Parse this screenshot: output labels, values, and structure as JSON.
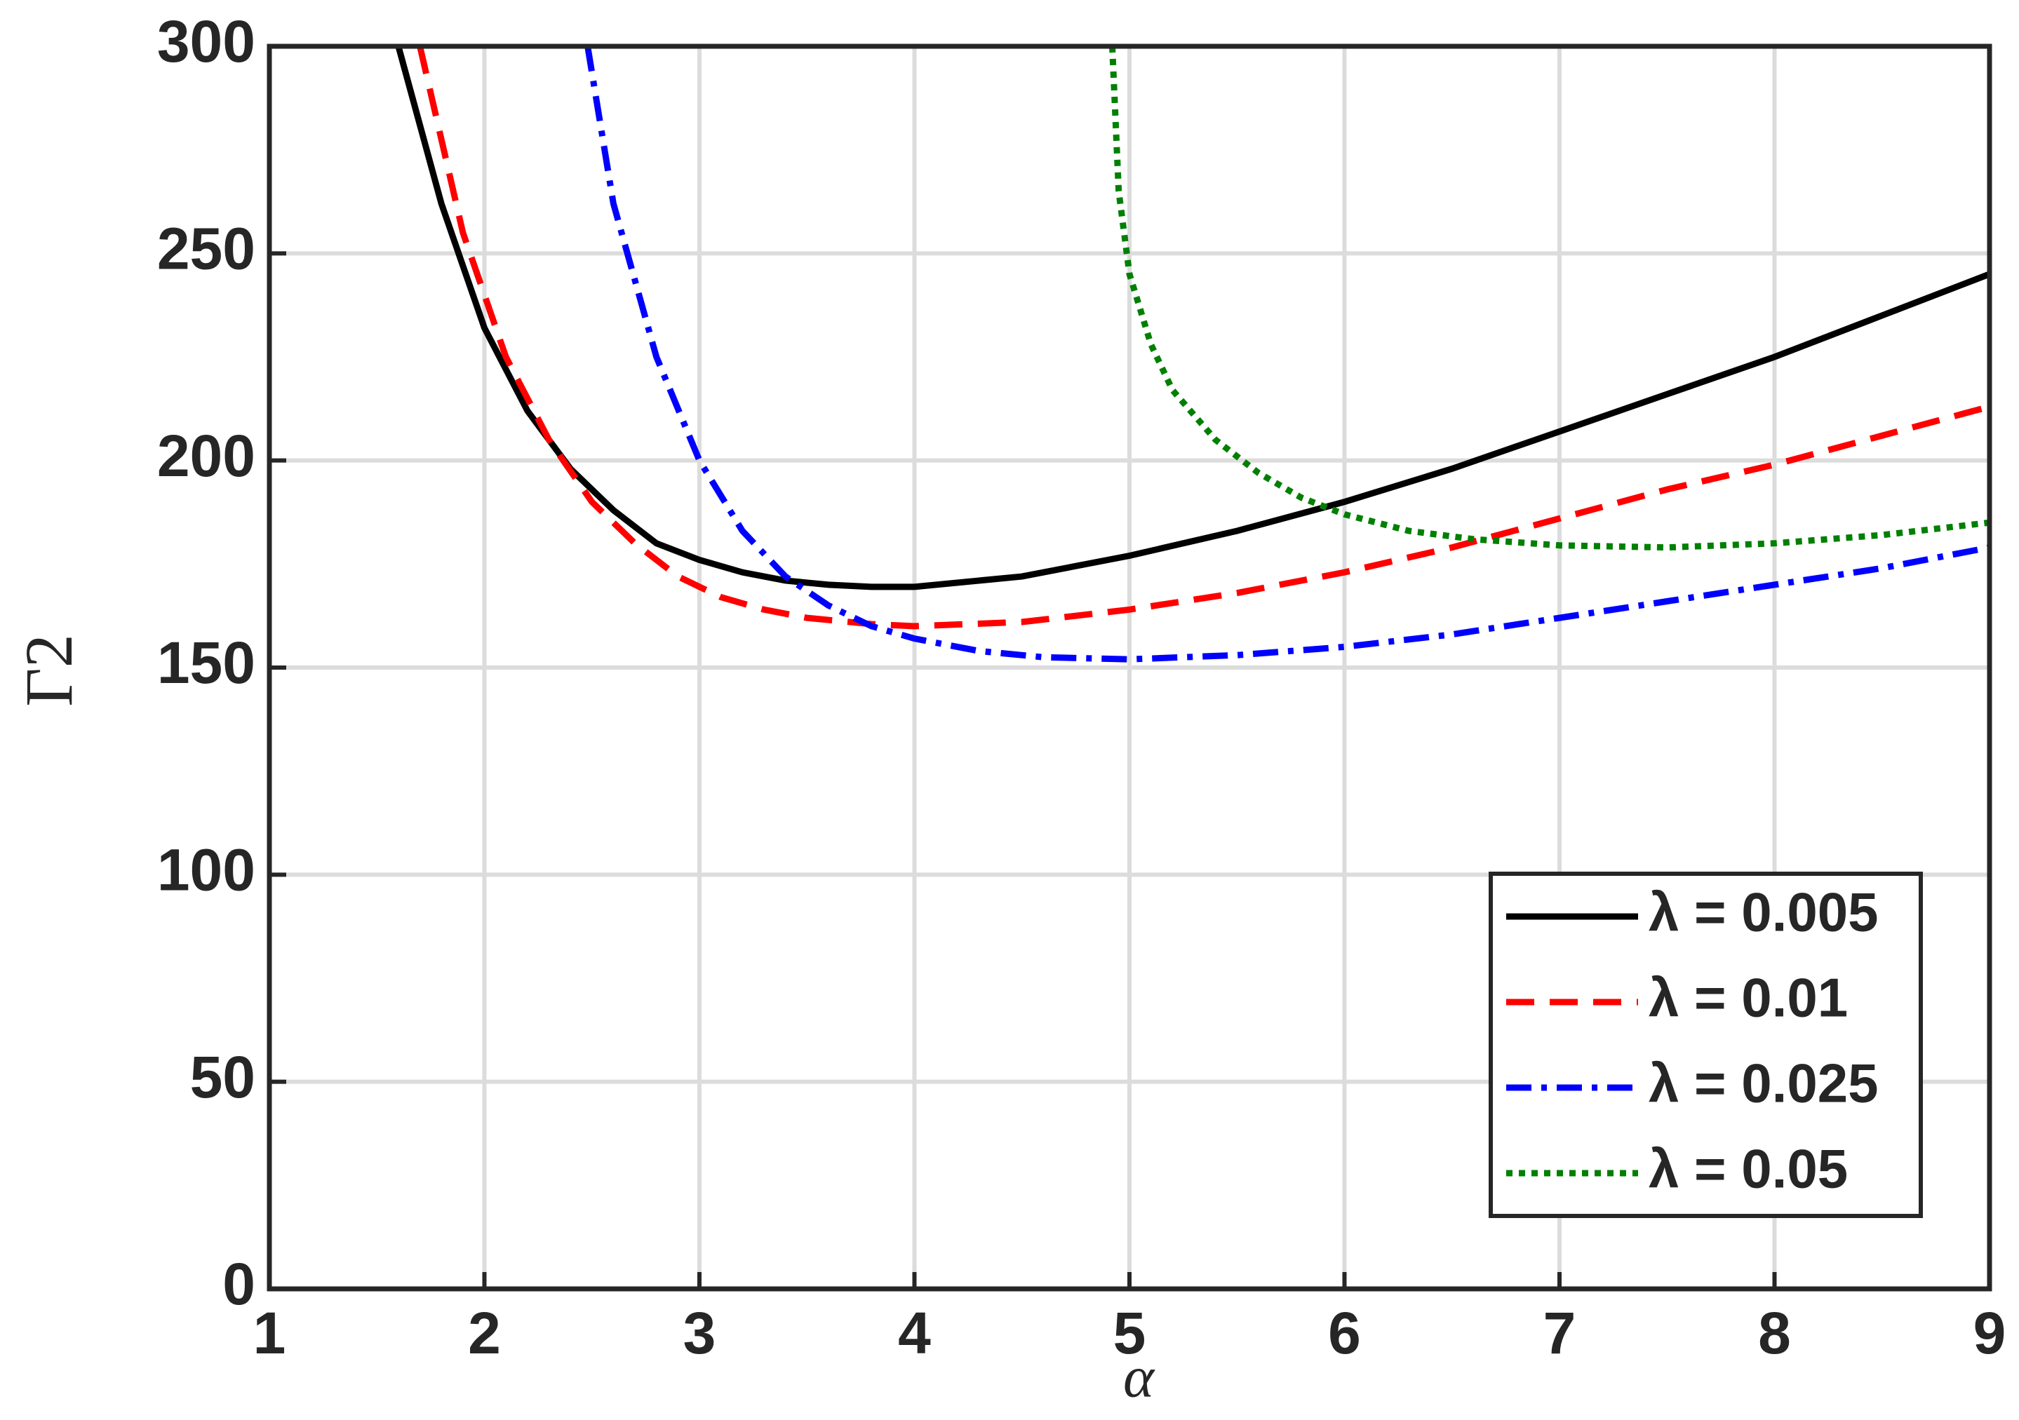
{
  "chart_data": {
    "type": "line",
    "xlabel": "α",
    "ylabel": "Γ2",
    "xlim": [
      1,
      9
    ],
    "ylim": [
      0,
      300
    ],
    "xticks": [
      1,
      2,
      3,
      4,
      5,
      6,
      7,
      8,
      9
    ],
    "yticks": [
      0,
      50,
      100,
      150,
      200,
      250,
      300
    ],
    "grid": true,
    "legend": "lower right",
    "series": [
      {
        "name": "λ = 0.005",
        "color": "#000000",
        "dash": "solid",
        "x": [
          1.6,
          1.8,
          2.0,
          2.2,
          2.4,
          2.6,
          2.8,
          3.0,
          3.2,
          3.4,
          3.6,
          3.8,
          4.0,
          4.5,
          5.0,
          5.5,
          6.0,
          6.5,
          7.0,
          7.5,
          8.0,
          8.5,
          9.0
        ],
        "values": [
          300,
          262,
          232,
          212,
          198,
          188,
          180,
          176,
          173,
          171,
          170,
          169.5,
          169.5,
          172,
          177,
          183,
          190,
          198,
          207,
          216,
          225,
          235,
          245
        ]
      },
      {
        "name": "λ = 0.01",
        "color": "#ff0000",
        "dash": "dashed",
        "x": [
          1.7,
          1.9,
          2.1,
          2.3,
          2.5,
          2.7,
          2.9,
          3.1,
          3.3,
          3.5,
          3.8,
          4.0,
          4.5,
          5.0,
          5.5,
          6.0,
          6.5,
          7.0,
          7.5,
          8.0,
          8.5,
          9.0
        ],
        "values": [
          300,
          255,
          225,
          205,
          190,
          180,
          172,
          167,
          164,
          162,
          160.5,
          160,
          161,
          164,
          168,
          173,
          179,
          186,
          193,
          199,
          206,
          213
        ]
      },
      {
        "name": "λ = 0.025",
        "color": "#0000ff",
        "dash": "dashdot",
        "x": [
          2.48,
          2.6,
          2.8,
          3.0,
          3.2,
          3.4,
          3.6,
          3.8,
          4.0,
          4.3,
          4.6,
          5.0,
          5.5,
          6.0,
          6.5,
          7.0,
          7.5,
          8.0,
          8.5,
          9.0
        ],
        "values": [
          300,
          262,
          225,
          200,
          183,
          172,
          165,
          160,
          157,
          154,
          152.5,
          152,
          153,
          155,
          158,
          162,
          166,
          170,
          174,
          179
        ]
      },
      {
        "name": "λ = 0.05",
        "color": "#008000",
        "dash": "dotted",
        "x": [
          4.92,
          4.95,
          5.0,
          5.1,
          5.2,
          5.4,
          5.6,
          5.8,
          6.0,
          6.3,
          6.6,
          7.0,
          7.5,
          8.0,
          8.5,
          9.0
        ],
        "values": [
          300,
          265,
          245,
          228,
          217,
          205,
          197,
          191,
          187,
          183,
          181,
          179.5,
          179,
          180,
          182,
          185
        ]
      }
    ]
  }
}
